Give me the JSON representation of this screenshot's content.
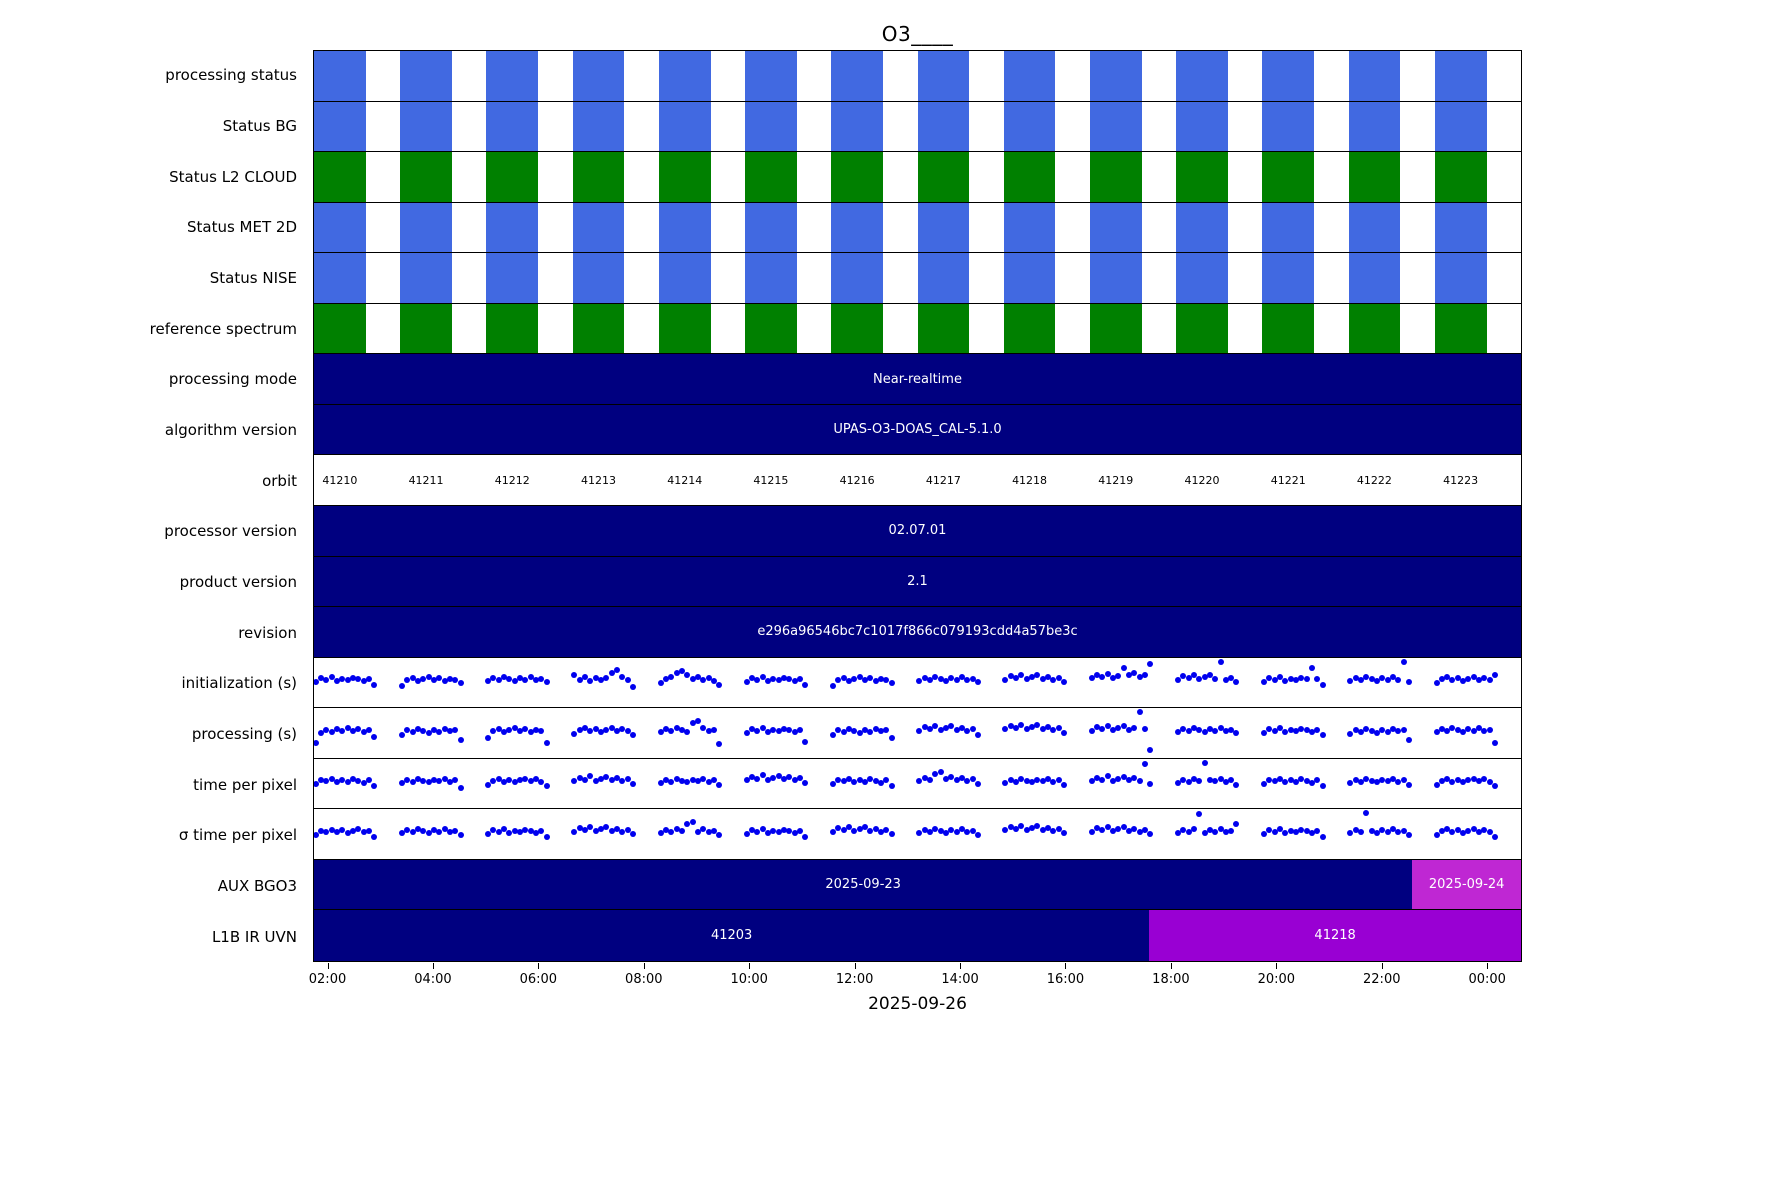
{
  "chart_data": {
    "type": "timeline",
    "title": "O3____",
    "xlabel": "2025-09-26",
    "x_ticks": [
      "02:00",
      "04:00",
      "06:00",
      "08:00",
      "10:00",
      "12:00",
      "14:00",
      "16:00",
      "18:00",
      "20:00",
      "22:00",
      "00:00"
    ],
    "n_orbits": 14,
    "stripe_fill_fraction": 0.6,
    "dot_color": "#0000ee",
    "colors": {
      "blue": "#4169e1",
      "green": "#008000",
      "navy": "#000080",
      "purple": "#9900d3",
      "magenta": "#bf27d3"
    },
    "rows": [
      {
        "label": "processing status",
        "kind": "stripes",
        "color": "#4169e1"
      },
      {
        "label": "Status BG",
        "kind": "stripes",
        "color": "#4169e1"
      },
      {
        "label": "Status L2  CLOUD",
        "kind": "stripes",
        "color": "#008000"
      },
      {
        "label": "Status MET 2D",
        "kind": "stripes",
        "color": "#4169e1"
      },
      {
        "label": "Status NISE",
        "kind": "stripes",
        "color": "#4169e1"
      },
      {
        "label": "reference spectrum",
        "kind": "stripes",
        "color": "#008000"
      },
      {
        "label": "processing mode",
        "kind": "bar",
        "segments": [
          {
            "text": "Near-realtime",
            "color": "#000080",
            "start": 0,
            "end": 1
          }
        ]
      },
      {
        "label": "algorithm version",
        "kind": "bar",
        "segments": [
          {
            "text": "UPAS-O3-DOAS_CAL-5.1.0",
            "color": "#000080",
            "start": 0,
            "end": 1
          }
        ]
      },
      {
        "label": "orbit",
        "kind": "orbits",
        "values": [
          "41210",
          "41211",
          "41212",
          "41213",
          "41214",
          "41215",
          "41216",
          "41217",
          "41218",
          "41219",
          "41220",
          "41221",
          "41222",
          "41223"
        ]
      },
      {
        "label": "processor version",
        "kind": "bar",
        "segments": [
          {
            "text": "02.07.01",
            "color": "#000080",
            "start": 0,
            "end": 1
          }
        ]
      },
      {
        "label": "product version",
        "kind": "bar",
        "segments": [
          {
            "text": "2.1",
            "color": "#000080",
            "start": 0,
            "end": 1
          }
        ]
      },
      {
        "label": "revision",
        "kind": "bar",
        "segments": [
          {
            "text": "e296a96546bc7c1017f866c079193cdd4a57be3c",
            "color": "#000080",
            "start": 0,
            "end": 1
          }
        ]
      },
      {
        "label": "initialization (s)",
        "kind": "scatter",
        "clusters": [
          [
            0.5,
            0.42,
            0.45,
            0.4,
            0.47,
            0.43,
            0.46,
            0.41,
            0.44,
            0.48,
            0.43,
            0.55
          ],
          [
            0.58,
            0.46,
            0.42,
            0.48,
            0.44,
            0.4,
            0.45,
            0.42,
            0.47,
            0.43,
            0.46,
            0.52
          ],
          [
            0.48,
            0.42,
            0.46,
            0.4,
            0.44,
            0.47,
            0.42,
            0.45,
            0.4,
            0.46,
            0.43,
            0.5
          ],
          [
            0.35,
            0.45,
            0.4,
            0.48,
            0.42,
            0.46,
            0.41,
            0.3,
            0.25,
            0.4,
            0.46,
            0.6
          ],
          [
            0.52,
            0.44,
            0.4,
            0.3,
            0.26,
            0.34,
            0.44,
            0.4,
            0.46,
            0.42,
            0.48,
            0.55
          ],
          [
            0.5,
            0.42,
            0.45,
            0.4,
            0.47,
            0.43,
            0.46,
            0.41,
            0.44,
            0.48,
            0.43,
            0.55
          ],
          [
            0.58,
            0.46,
            0.42,
            0.48,
            0.44,
            0.4,
            0.45,
            0.42,
            0.47,
            0.43,
            0.46,
            0.52
          ],
          [
            0.48,
            0.42,
            0.46,
            0.4,
            0.44,
            0.47,
            0.42,
            0.45,
            0.4,
            0.46,
            0.43,
            0.5
          ],
          [
            0.45,
            0.38,
            0.42,
            0.35,
            0.44,
            0.4,
            0.36,
            0.43,
            0.39,
            0.45,
            0.41,
            0.5
          ],
          [
            0.42,
            0.36,
            0.4,
            0.33,
            0.42,
            0.38,
            0.2,
            0.35,
            0.3,
            0.4,
            0.36,
            0.12
          ],
          [
            0.45,
            0.38,
            0.42,
            0.35,
            0.44,
            0.4,
            0.36,
            0.43,
            0.08,
            0.45,
            0.41,
            0.5
          ],
          [
            0.5,
            0.42,
            0.45,
            0.4,
            0.47,
            0.43,
            0.46,
            0.41,
            0.44,
            0.2,
            0.43,
            0.55
          ],
          [
            0.48,
            0.42,
            0.46,
            0.4,
            0.44,
            0.47,
            0.42,
            0.45,
            0.4,
            0.46,
            0.08,
            0.5
          ],
          [
            0.52,
            0.44,
            0.4,
            0.46,
            0.42,
            0.47,
            0.43,
            0.4,
            0.45,
            0.41,
            0.46,
            0.35
          ]
        ]
      },
      {
        "label": "processing (s)",
        "kind": "scatter",
        "clusters": [
          [
            0.7,
            0.5,
            0.44,
            0.48,
            0.42,
            0.46,
            0.4,
            0.45,
            0.42,
            0.47,
            0.44,
            0.58
          ],
          [
            0.55,
            0.44,
            0.48,
            0.42,
            0.46,
            0.5,
            0.44,
            0.47,
            0.42,
            0.46,
            0.43,
            0.65
          ],
          [
            0.6,
            0.46,
            0.42,
            0.48,
            0.44,
            0.4,
            0.45,
            0.42,
            0.47,
            0.43,
            0.46,
            0.7
          ],
          [
            0.52,
            0.44,
            0.4,
            0.46,
            0.42,
            0.47,
            0.43,
            0.4,
            0.45,
            0.41,
            0.46,
            0.55
          ],
          [
            0.48,
            0.42,
            0.46,
            0.4,
            0.44,
            0.47,
            0.3,
            0.25,
            0.4,
            0.46,
            0.43,
            0.72
          ],
          [
            0.5,
            0.42,
            0.45,
            0.4,
            0.47,
            0.43,
            0.46,
            0.41,
            0.44,
            0.48,
            0.43,
            0.68
          ],
          [
            0.55,
            0.44,
            0.48,
            0.42,
            0.46,
            0.5,
            0.44,
            0.47,
            0.42,
            0.46,
            0.43,
            0.6
          ],
          [
            0.45,
            0.38,
            0.42,
            0.35,
            0.44,
            0.4,
            0.36,
            0.43,
            0.39,
            0.45,
            0.41,
            0.55
          ],
          [
            0.42,
            0.36,
            0.4,
            0.33,
            0.42,
            0.38,
            0.34,
            0.41,
            0.37,
            0.43,
            0.39,
            0.5
          ],
          [
            0.45,
            0.38,
            0.42,
            0.35,
            0.44,
            0.4,
            0.36,
            0.43,
            0.39,
            0.08,
            0.41,
            0.85
          ],
          [
            0.48,
            0.42,
            0.46,
            0.4,
            0.44,
            0.47,
            0.42,
            0.45,
            0.4,
            0.46,
            0.43,
            0.5
          ],
          [
            0.5,
            0.42,
            0.45,
            0.4,
            0.47,
            0.43,
            0.46,
            0.41,
            0.44,
            0.48,
            0.43,
            0.55
          ],
          [
            0.52,
            0.44,
            0.48,
            0.42,
            0.46,
            0.5,
            0.44,
            0.47,
            0.42,
            0.46,
            0.43,
            0.65
          ],
          [
            0.48,
            0.42,
            0.46,
            0.4,
            0.44,
            0.47,
            0.42,
            0.45,
            0.4,
            0.46,
            0.43,
            0.7
          ]
        ]
      },
      {
        "label": "time per pixel",
        "kind": "scatter",
        "clusters": [
          [
            0.5,
            0.42,
            0.45,
            0.4,
            0.47,
            0.43,
            0.46,
            0.41,
            0.44,
            0.48,
            0.43,
            0.55
          ],
          [
            0.48,
            0.42,
            0.46,
            0.4,
            0.44,
            0.47,
            0.42,
            0.45,
            0.4,
            0.46,
            0.43,
            0.58
          ],
          [
            0.52,
            0.44,
            0.4,
            0.46,
            0.42,
            0.47,
            0.43,
            0.4,
            0.45,
            0.41,
            0.46,
            0.55
          ],
          [
            0.45,
            0.38,
            0.42,
            0.35,
            0.44,
            0.4,
            0.36,
            0.43,
            0.39,
            0.45,
            0.41,
            0.5
          ],
          [
            0.48,
            0.42,
            0.46,
            0.4,
            0.44,
            0.47,
            0.42,
            0.45,
            0.4,
            0.46,
            0.43,
            0.52
          ],
          [
            0.42,
            0.36,
            0.4,
            0.33,
            0.42,
            0.38,
            0.34,
            0.41,
            0.37,
            0.43,
            0.39,
            0.48
          ],
          [
            0.5,
            0.42,
            0.45,
            0.4,
            0.47,
            0.43,
            0.46,
            0.41,
            0.44,
            0.48,
            0.43,
            0.55
          ],
          [
            0.45,
            0.38,
            0.42,
            0.3,
            0.26,
            0.4,
            0.36,
            0.43,
            0.39,
            0.45,
            0.41,
            0.5
          ],
          [
            0.48,
            0.42,
            0.46,
            0.4,
            0.44,
            0.47,
            0.42,
            0.45,
            0.4,
            0.46,
            0.43,
            0.52
          ],
          [
            0.45,
            0.38,
            0.42,
            0.35,
            0.44,
            0.4,
            0.36,
            0.43,
            0.39,
            0.45,
            0.1,
            0.5
          ],
          [
            0.48,
            0.42,
            0.46,
            0.4,
            0.44,
            0.08,
            0.42,
            0.45,
            0.4,
            0.46,
            0.43,
            0.52
          ],
          [
            0.5,
            0.42,
            0.45,
            0.4,
            0.47,
            0.43,
            0.46,
            0.41,
            0.44,
            0.48,
            0.43,
            0.55
          ],
          [
            0.48,
            0.42,
            0.46,
            0.4,
            0.44,
            0.47,
            0.42,
            0.45,
            0.4,
            0.46,
            0.43,
            0.52
          ],
          [
            0.52,
            0.44,
            0.4,
            0.46,
            0.42,
            0.47,
            0.43,
            0.4,
            0.45,
            0.41,
            0.46,
            0.55
          ]
        ]
      },
      {
        "label": "σ time per pixel",
        "kind": "scatter",
        "clusters": [
          [
            0.52,
            0.44,
            0.46,
            0.41,
            0.45,
            0.42,
            0.47,
            0.43,
            0.4,
            0.46,
            0.44,
            0.56
          ],
          [
            0.48,
            0.42,
            0.46,
            0.4,
            0.44,
            0.47,
            0.42,
            0.45,
            0.4,
            0.46,
            0.43,
            0.52
          ],
          [
            0.5,
            0.42,
            0.45,
            0.4,
            0.47,
            0.43,
            0.46,
            0.41,
            0.44,
            0.48,
            0.43,
            0.55
          ],
          [
            0.45,
            0.38,
            0.42,
            0.35,
            0.44,
            0.4,
            0.36,
            0.43,
            0.39,
            0.45,
            0.41,
            0.5
          ],
          [
            0.48,
            0.42,
            0.46,
            0.4,
            0.44,
            0.3,
            0.26,
            0.45,
            0.4,
            0.46,
            0.43,
            0.52
          ],
          [
            0.5,
            0.42,
            0.45,
            0.4,
            0.47,
            0.43,
            0.46,
            0.41,
            0.44,
            0.48,
            0.43,
            0.55
          ],
          [
            0.45,
            0.38,
            0.42,
            0.35,
            0.44,
            0.4,
            0.36,
            0.43,
            0.39,
            0.45,
            0.41,
            0.5
          ],
          [
            0.48,
            0.42,
            0.46,
            0.4,
            0.44,
            0.47,
            0.42,
            0.45,
            0.4,
            0.46,
            0.43,
            0.52
          ],
          [
            0.42,
            0.36,
            0.4,
            0.33,
            0.42,
            0.38,
            0.34,
            0.41,
            0.37,
            0.43,
            0.39,
            0.48
          ],
          [
            0.45,
            0.38,
            0.42,
            0.35,
            0.44,
            0.4,
            0.36,
            0.43,
            0.39,
            0.45,
            0.41,
            0.5
          ],
          [
            0.48,
            0.42,
            0.46,
            0.4,
            0.1,
            0.47,
            0.42,
            0.45,
            0.4,
            0.46,
            0.43,
            0.3
          ],
          [
            0.5,
            0.42,
            0.45,
            0.4,
            0.47,
            0.43,
            0.46,
            0.41,
            0.44,
            0.48,
            0.43,
            0.55
          ],
          [
            0.48,
            0.42,
            0.46,
            0.08,
            0.44,
            0.47,
            0.42,
            0.45,
            0.4,
            0.46,
            0.43,
            0.52
          ],
          [
            0.52,
            0.44,
            0.4,
            0.46,
            0.42,
            0.47,
            0.43,
            0.4,
            0.45,
            0.41,
            0.46,
            0.55
          ]
        ]
      },
      {
        "label": "AUX BGO3",
        "kind": "bar",
        "segments": [
          {
            "text": "2025-09-23",
            "color": "#000080",
            "start": 0,
            "end": 0.91
          },
          {
            "text": "2025-09-24",
            "color": "#bf27d3",
            "start": 0.91,
            "end": 1
          }
        ]
      },
      {
        "label": "L1B IR UVN",
        "kind": "bar",
        "segments": [
          {
            "text": "41203",
            "color": "#000080",
            "start": 0,
            "end": 0.692
          },
          {
            "text": "41218",
            "color": "#9900d3",
            "start": 0.692,
            "end": 1
          }
        ]
      }
    ]
  }
}
